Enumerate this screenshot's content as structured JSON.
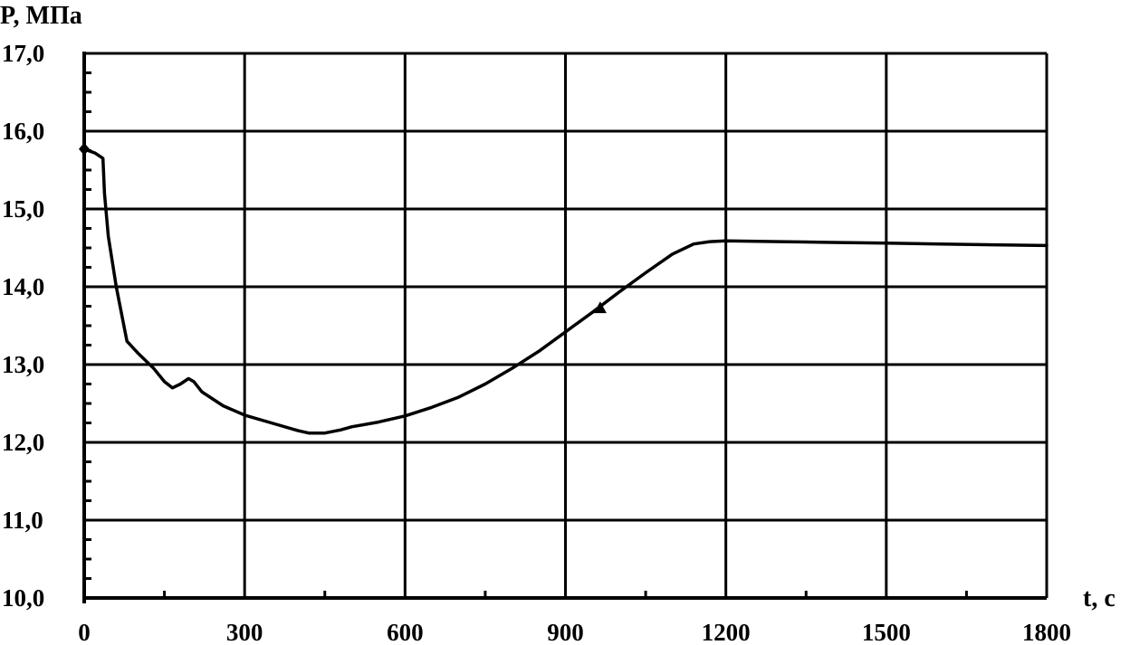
{
  "chart_data": {
    "type": "line",
    "title": "",
    "ylabel": "P, МПа",
    "xlabel": "t, c",
    "xlim": [
      0,
      1800
    ],
    "ylim": [
      10.0,
      17.0
    ],
    "x_ticks": [
      0,
      300,
      600,
      900,
      1200,
      1500,
      1800
    ],
    "x_tick_labels": [
      "0",
      "300",
      "600",
      "900",
      "1200",
      "1500",
      "1800"
    ],
    "y_ticks": [
      10.0,
      11.0,
      12.0,
      13.0,
      14.0,
      15.0,
      16.0,
      17.0
    ],
    "y_tick_labels": [
      "10,0",
      "11,0",
      "12,0",
      "13,0",
      "14,0",
      "15,0",
      "16,0",
      "17,0"
    ],
    "grid": true,
    "legend": "none",
    "series": [
      {
        "color": "#000000",
        "marker_start": "diamond",
        "marker_mid": {
          "x": 965,
          "y": 13.72,
          "shape": "triangle"
        },
        "x": [
          0,
          20,
          35,
          38,
          45,
          60,
          80,
          100,
          130,
          150,
          165,
          180,
          195,
          205,
          220,
          260,
          300,
          350,
          400,
          420,
          450,
          480,
          500,
          550,
          600,
          650,
          700,
          750,
          800,
          850,
          900,
          950,
          1000,
          1050,
          1100,
          1140,
          1170,
          1200,
          1300,
          1400,
          1500,
          1600,
          1700,
          1800
        ],
        "y": [
          15.77,
          15.72,
          15.65,
          15.2,
          14.65,
          14.0,
          13.3,
          13.15,
          12.95,
          12.78,
          12.7,
          12.75,
          12.82,
          12.78,
          12.65,
          12.47,
          12.35,
          12.25,
          12.15,
          12.12,
          12.12,
          12.16,
          12.2,
          12.26,
          12.34,
          12.45,
          12.58,
          12.75,
          12.95,
          13.17,
          13.42,
          13.67,
          13.93,
          14.18,
          14.42,
          14.55,
          14.58,
          14.59,
          14.58,
          14.57,
          14.56,
          14.55,
          14.54,
          14.53
        ]
      }
    ]
  }
}
